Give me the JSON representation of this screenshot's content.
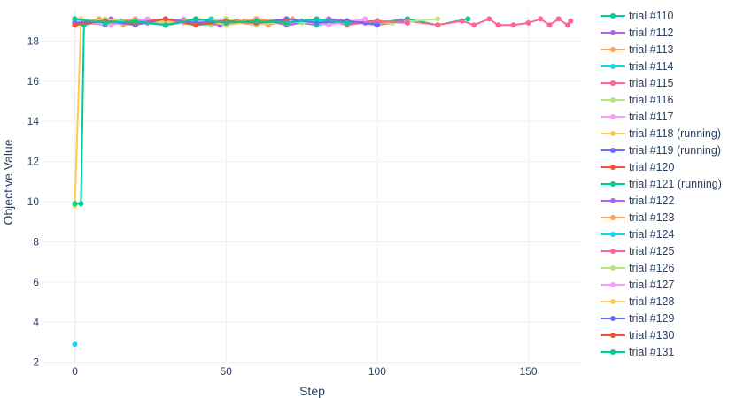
{
  "chart_data": {
    "type": "line",
    "xlabel": "Step",
    "ylabel": "Objective Value",
    "xlim": [
      -11,
      168
    ],
    "ylim": [
      1.9,
      19.6
    ],
    "xticks": [
      0,
      50,
      100,
      150
    ],
    "yticks": [
      2,
      4,
      6,
      8,
      10,
      12,
      14,
      16,
      18
    ],
    "grid": true,
    "legend_position": "right",
    "series": [
      {
        "name": "trial #110",
        "color": "#00cc96",
        "points": [
          [
            0,
            18.8
          ],
          [
            10,
            19.0
          ],
          [
            20,
            18.9
          ],
          [
            30,
            19.1
          ],
          [
            40,
            18.8
          ],
          [
            50,
            19.0
          ],
          [
            60,
            18.9
          ],
          [
            70,
            19.0
          ],
          [
            80,
            18.8
          ],
          [
            90,
            19.0
          ],
          [
            100,
            18.9
          ],
          [
            110,
            19.1
          ],
          [
            120,
            18.8
          ],
          [
            130,
            19.1
          ]
        ]
      },
      {
        "name": "trial #112",
        "color": "#ab63fa",
        "points": [
          [
            0,
            19.0
          ],
          [
            10,
            18.9
          ],
          [
            20,
            19.1
          ],
          [
            30,
            18.9
          ],
          [
            40,
            19.0
          ],
          [
            50,
            18.9
          ],
          [
            60,
            19.1
          ],
          [
            70,
            18.8
          ],
          [
            80,
            19.0
          ],
          [
            90,
            18.9
          ],
          [
            100,
            19.0
          ]
        ]
      },
      {
        "name": "trial #113",
        "color": "#ffa15a",
        "points": [
          [
            0,
            18.9
          ],
          [
            8,
            19.1
          ],
          [
            16,
            18.8
          ],
          [
            24,
            19.0
          ],
          [
            32,
            18.9
          ],
          [
            40,
            19.1
          ],
          [
            48,
            18.9
          ],
          [
            56,
            19.0
          ],
          [
            64,
            18.8
          ],
          [
            72,
            19.1
          ],
          [
            80,
            18.9
          ],
          [
            88,
            19.0
          ]
        ]
      },
      {
        "name": "trial #114",
        "color": "#19d3f3",
        "points": [
          [
            0,
            2.9
          ]
        ]
      },
      {
        "name": "trial #115",
        "color": "#ff6692",
        "points": [
          [
            0,
            18.9
          ],
          [
            10,
            19.0
          ],
          [
            20,
            18.8
          ],
          [
            30,
            19.1
          ],
          [
            40,
            18.9
          ],
          [
            50,
            19.0
          ],
          [
            60,
            18.8
          ],
          [
            70,
            19.1
          ],
          [
            80,
            18.9
          ],
          [
            90,
            19.0
          ],
          [
            100,
            18.8
          ],
          [
            110,
            19.0
          ],
          [
            120,
            18.8
          ],
          [
            128,
            19.0
          ],
          [
            132,
            18.8
          ],
          [
            137,
            19.1
          ],
          [
            140,
            18.8
          ],
          [
            145,
            18.8
          ],
          [
            150,
            18.9
          ],
          [
            154,
            19.1
          ],
          [
            157,
            18.8
          ],
          [
            160,
            19.1
          ],
          [
            163,
            18.8
          ],
          [
            164,
            19.0
          ]
        ]
      },
      {
        "name": "trial #116",
        "color": "#b6e880",
        "points": [
          [
            0,
            19.1
          ],
          [
            15,
            18.9
          ],
          [
            30,
            19.0
          ],
          [
            45,
            18.8
          ],
          [
            60,
            19.1
          ],
          [
            75,
            18.9
          ],
          [
            90,
            19.0
          ],
          [
            105,
            18.9
          ],
          [
            120,
            19.1
          ]
        ]
      },
      {
        "name": "trial #117",
        "color": "#ff97ff",
        "points": [
          [
            0,
            18.8
          ],
          [
            12,
            19.0
          ],
          [
            24,
            18.9
          ],
          [
            36,
            19.1
          ],
          [
            48,
            18.8
          ],
          [
            60,
            19.0
          ],
          [
            72,
            18.9
          ],
          [
            84,
            19.1
          ],
          [
            96,
            18.9
          ]
        ]
      },
      {
        "name": "trial #118 (running)",
        "color": "#fecb52",
        "points": [
          [
            0,
            9.8
          ],
          [
            2,
            19.1
          ],
          [
            10,
            18.9
          ],
          [
            20,
            19.0
          ],
          [
            30,
            18.8
          ],
          [
            40,
            19.1
          ],
          [
            50,
            18.9
          ],
          [
            60,
            19.0
          ],
          [
            70,
            18.9
          ]
        ]
      },
      {
        "name": "trial #119 (running)",
        "color": "#636efa",
        "points": [
          [
            0,
            19.0
          ],
          [
            10,
            18.8
          ],
          [
            20,
            19.0
          ],
          [
            30,
            18.9
          ],
          [
            40,
            19.1
          ],
          [
            50,
            18.8
          ],
          [
            60,
            19.0
          ],
          [
            70,
            18.9
          ],
          [
            80,
            19.1
          ],
          [
            90,
            18.9
          ],
          [
            100,
            19.0
          ],
          [
            110,
            18.9
          ]
        ]
      },
      {
        "name": "trial #120",
        "color": "#ef553b",
        "points": [
          [
            0,
            18.8
          ],
          [
            10,
            19.0
          ],
          [
            20,
            18.9
          ],
          [
            30,
            19.0
          ],
          [
            40,
            18.8
          ],
          [
            50,
            19.1
          ],
          [
            60,
            18.9
          ],
          [
            70,
            19.0
          ],
          [
            80,
            18.9
          ]
        ]
      },
      {
        "name": "trial #121 (running)",
        "color": "#00cc96",
        "points": [
          [
            0,
            9.9
          ],
          [
            2,
            9.9
          ],
          [
            3,
            18.8
          ],
          [
            10,
            19.0
          ],
          [
            20,
            18.9
          ],
          [
            30,
            19.0
          ],
          [
            40,
            18.8
          ],
          [
            50,
            18.9
          ],
          [
            60,
            19.0
          ],
          [
            70,
            18.9
          ]
        ]
      },
      {
        "name": "trial #122",
        "color": "#ab63fa",
        "points": [
          [
            0,
            18.9
          ],
          [
            12,
            19.1
          ],
          [
            24,
            18.9
          ],
          [
            36,
            19.0
          ],
          [
            48,
            18.8
          ],
          [
            60,
            19.0
          ],
          [
            72,
            18.9
          ],
          [
            84,
            19.1
          ],
          [
            96,
            18.9
          ],
          [
            108,
            19.0
          ]
        ]
      },
      {
        "name": "trial #123",
        "color": "#ffa15a",
        "points": [
          [
            0,
            19.0
          ],
          [
            10,
            18.9
          ],
          [
            20,
            19.1
          ],
          [
            30,
            18.8
          ],
          [
            40,
            19.0
          ],
          [
            50,
            18.9
          ],
          [
            60,
            19.1
          ],
          [
            70,
            18.9
          ],
          [
            80,
            19.0
          ]
        ]
      },
      {
        "name": "trial #124",
        "color": "#19d3f3",
        "points": [
          [
            0,
            18.9
          ],
          [
            15,
            19.0
          ],
          [
            30,
            18.8
          ],
          [
            45,
            19.1
          ],
          [
            60,
            18.9
          ],
          [
            75,
            19.0
          ],
          [
            90,
            18.9
          ]
        ]
      },
      {
        "name": "trial #125",
        "color": "#ff6692",
        "points": [
          [
            0,
            19.1
          ],
          [
            10,
            18.9
          ],
          [
            20,
            19.0
          ],
          [
            30,
            18.8
          ],
          [
            40,
            19.1
          ],
          [
            50,
            18.9
          ],
          [
            60,
            19.0
          ],
          [
            70,
            18.9
          ],
          [
            80,
            19.1
          ],
          [
            90,
            18.8
          ],
          [
            100,
            19.0
          ],
          [
            110,
            18.9
          ]
        ]
      },
      {
        "name": "trial #126",
        "color": "#b6e880",
        "points": [
          [
            0,
            18.8
          ],
          [
            10,
            19.1
          ],
          [
            20,
            18.9
          ],
          [
            30,
            19.0
          ],
          [
            40,
            18.9
          ],
          [
            50,
            19.1
          ],
          [
            60,
            18.8
          ],
          [
            70,
            19.0
          ],
          [
            80,
            18.9
          ]
        ]
      },
      {
        "name": "trial #127",
        "color": "#ff97ff",
        "points": [
          [
            0,
            19.0
          ],
          [
            12,
            18.8
          ],
          [
            24,
            19.1
          ],
          [
            36,
            18.9
          ],
          [
            48,
            19.0
          ],
          [
            60,
            18.9
          ],
          [
            72,
            19.0
          ],
          [
            84,
            18.8
          ],
          [
            96,
            19.1
          ]
        ]
      },
      {
        "name": "trial #128",
        "color": "#fecb52",
        "points": [
          [
            0,
            19.1
          ],
          [
            10,
            18.9
          ],
          [
            20,
            19.0
          ],
          [
            30,
            18.9
          ],
          [
            40,
            19.1
          ],
          [
            50,
            18.8
          ],
          [
            60,
            19.0
          ],
          [
            70,
            18.9
          ]
        ]
      },
      {
        "name": "trial #129",
        "color": "#636efa",
        "points": [
          [
            0,
            18.9
          ],
          [
            10,
            19.0
          ],
          [
            20,
            18.8
          ],
          [
            30,
            19.1
          ],
          [
            40,
            18.9
          ],
          [
            50,
            19.0
          ],
          [
            60,
            18.9
          ],
          [
            70,
            19.1
          ],
          [
            80,
            18.9
          ],
          [
            90,
            19.0
          ],
          [
            100,
            18.8
          ]
        ]
      },
      {
        "name": "trial #130",
        "color": "#ef553b",
        "points": [
          [
            0,
            18.8
          ],
          [
            10,
            19.0
          ],
          [
            20,
            18.9
          ],
          [
            30,
            19.1
          ],
          [
            40,
            18.8
          ],
          [
            50,
            19.0
          ],
          [
            60,
            18.9
          ],
          [
            70,
            19.0
          ]
        ]
      },
      {
        "name": "trial #131",
        "color": "#00cc96",
        "points": [
          [
            0,
            19.1
          ],
          [
            10,
            18.9
          ],
          [
            20,
            19.0
          ],
          [
            30,
            18.8
          ],
          [
            40,
            19.1
          ],
          [
            50,
            18.9
          ],
          [
            60,
            19.0
          ],
          [
            70,
            18.9
          ],
          [
            80,
            19.1
          ],
          [
            90,
            18.9
          ]
        ]
      }
    ]
  }
}
